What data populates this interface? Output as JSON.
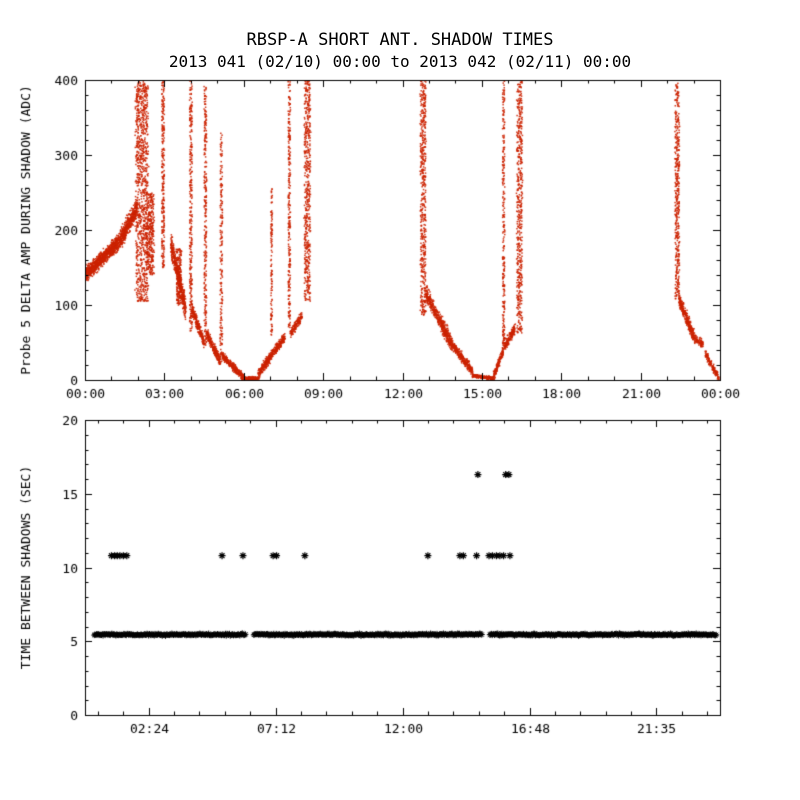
{
  "title": "RBSP-A SHORT ANT. SHADOW TIMES",
  "subtitle": "2013 041 (02/10) 00:00 to 2013 042 (02/11) 00:00",
  "colors": {
    "background": "#ffffff",
    "axis": "#000000",
    "top_marker": "#cc2200",
    "bottom_marker": "#000000"
  },
  "chart_data": [
    {
      "id": "top",
      "type": "scatter",
      "marker": "dot",
      "color": "#cc2200",
      "ylabel": "Probe 5 DELTA AMP DURING SHADOW (ADC)",
      "xlim": [
        0,
        24
      ],
      "ylim": [
        0,
        400
      ],
      "grid": false,
      "xticks": [
        {
          "v": 0,
          "label": "00:00"
        },
        {
          "v": 3,
          "label": "03:00"
        },
        {
          "v": 6,
          "label": "06:00"
        },
        {
          "v": 9,
          "label": "09:00"
        },
        {
          "v": 12,
          "label": "12:00"
        },
        {
          "v": 15,
          "label": "15:00"
        },
        {
          "v": 18,
          "label": "18:00"
        },
        {
          "v": 21,
          "label": "21:00"
        },
        {
          "v": 24,
          "label": "00:00"
        }
      ],
      "xminor": {
        "start": 0,
        "step": 1
      },
      "yticks": [
        {
          "v": 0,
          "label": "0"
        },
        {
          "v": 100,
          "label": "100"
        },
        {
          "v": 200,
          "label": "200"
        },
        {
          "v": 300,
          "label": "300"
        },
        {
          "v": 400,
          "label": "400"
        }
      ],
      "yminor": {
        "start": 0,
        "step": 20
      },
      "clusters": [
        {
          "kind": "band",
          "x0": 0.0,
          "y0": 140,
          "x1": 1.3,
          "y1": 185,
          "spread": 14,
          "n": 900
        },
        {
          "kind": "band",
          "x0": 1.3,
          "y0": 185,
          "x1": 1.95,
          "y1": 228,
          "spread": 18,
          "n": 450
        },
        {
          "kind": "column",
          "x": 2.15,
          "w": 0.45,
          "ymin": 105,
          "ymax": 398,
          "n": 950
        },
        {
          "kind": "column",
          "x": 2.45,
          "w": 0.3,
          "ymin": 140,
          "ymax": 250,
          "n": 350
        },
        {
          "kind": "column",
          "x": 2.95,
          "w": 0.1,
          "ymin": 150,
          "ymax": 400,
          "n": 260
        },
        {
          "kind": "band",
          "x0": 3.25,
          "y0": 180,
          "x1": 3.8,
          "y1": 95,
          "spread": 22,
          "n": 420
        },
        {
          "kind": "column",
          "x": 3.55,
          "w": 0.18,
          "ymin": 100,
          "ymax": 175,
          "n": 220
        },
        {
          "kind": "column",
          "x": 4.0,
          "w": 0.09,
          "ymin": 65,
          "ymax": 400,
          "n": 300
        },
        {
          "kind": "band",
          "x0": 4.05,
          "y0": 95,
          "x1": 4.5,
          "y1": 50,
          "spread": 12,
          "n": 220
        },
        {
          "kind": "column",
          "x": 4.55,
          "w": 0.09,
          "ymin": 45,
          "ymax": 392,
          "n": 280
        },
        {
          "kind": "band",
          "x0": 4.6,
          "y0": 62,
          "x1": 5.1,
          "y1": 25,
          "spread": 10,
          "n": 220
        },
        {
          "kind": "column",
          "x": 5.15,
          "w": 0.09,
          "ymin": 22,
          "ymax": 330,
          "n": 200
        },
        {
          "kind": "band",
          "x0": 5.2,
          "y0": 32,
          "x1": 6.0,
          "y1": 3,
          "spread": 7,
          "n": 320
        },
        {
          "kind": "band",
          "x0": 5.95,
          "y0": 2,
          "x1": 6.55,
          "y1": 2,
          "spread": 3,
          "n": 260
        },
        {
          "kind": "band",
          "x0": 6.55,
          "y0": 8,
          "x1": 7.55,
          "y1": 58,
          "spread": 9,
          "n": 420
        },
        {
          "kind": "column",
          "x": 7.05,
          "w": 0.06,
          "ymin": 60,
          "ymax": 255,
          "n": 120
        },
        {
          "kind": "column",
          "x": 7.72,
          "w": 0.08,
          "ymin": 70,
          "ymax": 400,
          "n": 260
        },
        {
          "kind": "band",
          "x0": 7.75,
          "y0": 62,
          "x1": 8.2,
          "y1": 85,
          "spread": 10,
          "n": 140
        },
        {
          "kind": "column",
          "x": 8.4,
          "w": 0.22,
          "ymin": 105,
          "ymax": 400,
          "n": 520
        },
        {
          "kind": "column",
          "x": 12.78,
          "w": 0.2,
          "ymin": 85,
          "ymax": 400,
          "n": 520
        },
        {
          "kind": "band",
          "x0": 12.9,
          "y0": 115,
          "x1": 13.85,
          "y1": 48,
          "spread": 16,
          "n": 460
        },
        {
          "kind": "band",
          "x0": 13.85,
          "y0": 48,
          "x1": 14.65,
          "y1": 12,
          "spread": 9,
          "n": 300
        },
        {
          "kind": "band",
          "x0": 14.65,
          "y0": 6,
          "x1": 15.45,
          "y1": 2,
          "spread": 3,
          "n": 300
        },
        {
          "kind": "band",
          "x0": 15.45,
          "y0": 6,
          "x1": 15.8,
          "y1": 38,
          "spread": 8,
          "n": 160
        },
        {
          "kind": "column",
          "x": 15.82,
          "w": 0.08,
          "ymin": 40,
          "ymax": 400,
          "n": 280
        },
        {
          "kind": "band",
          "x0": 15.85,
          "y0": 45,
          "x1": 16.25,
          "y1": 68,
          "spread": 10,
          "n": 160
        },
        {
          "kind": "column",
          "x": 16.42,
          "w": 0.2,
          "ymin": 62,
          "ymax": 400,
          "n": 520
        },
        {
          "kind": "column",
          "x": 22.38,
          "w": 0.16,
          "ymin": 108,
          "ymax": 400,
          "n": 420
        },
        {
          "kind": "band",
          "x0": 22.45,
          "y0": 108,
          "x1": 23.05,
          "y1": 55,
          "spread": 13,
          "n": 300
        },
        {
          "kind": "band",
          "x0": 23.05,
          "y0": 55,
          "x1": 23.35,
          "y1": 48,
          "spread": 8,
          "n": 80
        },
        {
          "kind": "band",
          "x0": 23.45,
          "y0": 35,
          "x1": 23.95,
          "y1": 2,
          "spread": 7,
          "n": 160
        }
      ]
    },
    {
      "id": "bottom",
      "type": "scatter",
      "marker": "asterisk",
      "color": "#000000",
      "ylabel": "TIME BETWEEN SHADOWS (SEC)",
      "xlim": [
        0,
        24
      ],
      "ylim": [
        0,
        20
      ],
      "grid": false,
      "xticks": [
        {
          "v": 2.4,
          "label": "02:24"
        },
        {
          "v": 7.2,
          "label": "07:12"
        },
        {
          "v": 12,
          "label": "12:00"
        },
        {
          "v": 16.8,
          "label": "16:48"
        },
        {
          "v": 21.5833,
          "label": "21:35"
        }
      ],
      "xminor": {
        "start": 2.4,
        "step": 0.96
      },
      "yticks": [
        {
          "v": 0,
          "label": "0"
        },
        {
          "v": 5,
          "label": "5"
        },
        {
          "v": 10,
          "label": "10"
        },
        {
          "v": 15,
          "label": "15"
        },
        {
          "v": 20,
          "label": "20"
        }
      ],
      "yminor": {
        "start": 0,
        "step": 1
      },
      "band": {
        "y": 5.45,
        "jitter": 0.1,
        "segments": [
          [
            0.35,
            6.08
          ],
          [
            6.38,
            15.02
          ],
          [
            15.3,
            23.88
          ]
        ]
      },
      "point_rows": [
        {
          "y": 10.8,
          "x": [
            1.0,
            1.12,
            1.22,
            1.32,
            1.45,
            1.58,
            5.18,
            5.97,
            7.11,
            7.24,
            8.31,
            12.96,
            14.17,
            14.3,
            14.8,
            15.27,
            15.4,
            15.55,
            15.68,
            15.82,
            16.06
          ]
        },
        {
          "y": 16.3,
          "x": [
            14.85,
            15.9,
            16.02
          ]
        }
      ]
    }
  ]
}
